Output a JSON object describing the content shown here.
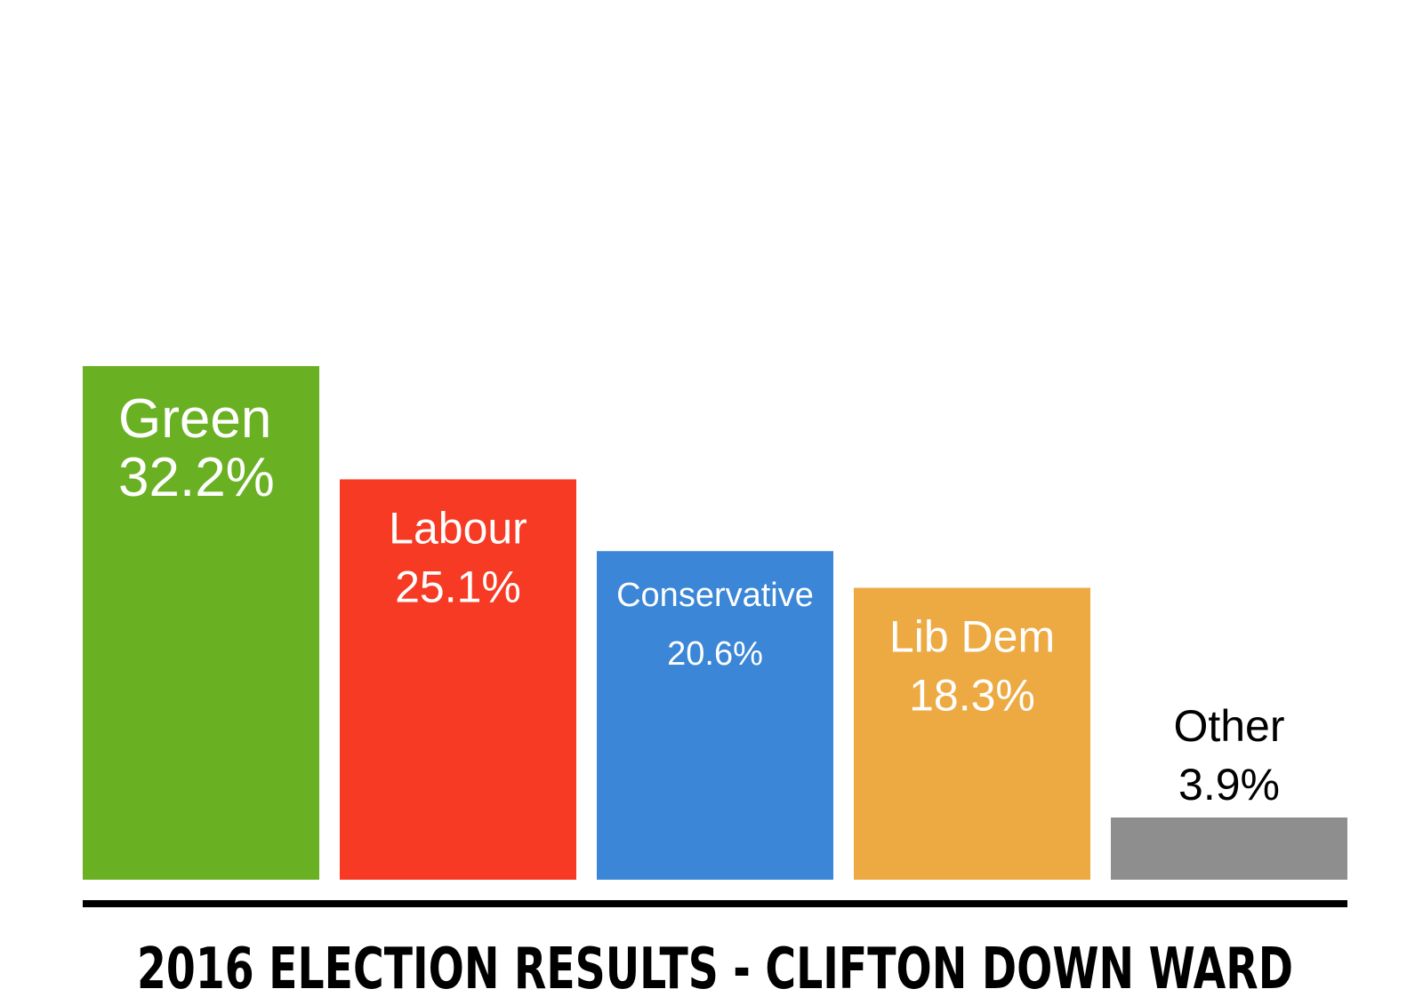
{
  "chart_data": {
    "type": "bar",
    "title": "2016 ELECTION RESULTS - CLIFTON DOWN WARD",
    "categories": [
      "Green",
      "Labour",
      "Conservative",
      "Lib Dem",
      "Other"
    ],
    "values": [
      32.2,
      25.1,
      20.6,
      18.3,
      3.9
    ],
    "value_labels": [
      "32.2%",
      "25.1%",
      "20.6%",
      "18.3%",
      "3.9%"
    ],
    "colors": [
      "#6ab023",
      "#f73a23",
      "#3b86d6",
      "#edaa42",
      "#8e8e8e"
    ],
    "label_colors": [
      "#ffffff",
      "#ffffff",
      "#ffffff",
      "#ffffff",
      "#000000"
    ],
    "ylim": [
      0,
      32.2
    ],
    "grid": false,
    "xlabel": "",
    "ylabel": ""
  }
}
